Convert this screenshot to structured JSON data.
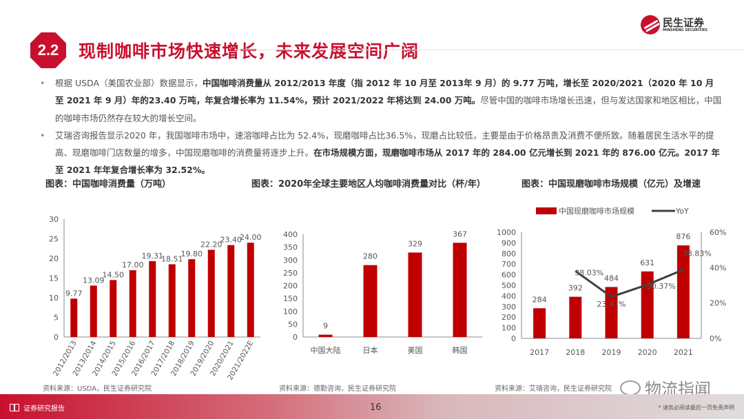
{
  "header": {
    "section_number": "2.2",
    "title": "现制咖啡市场快速增长，未来发展空间广阔",
    "logo_cn": "民生证券",
    "logo_en": "MINSHENG SECURITIES"
  },
  "paragraphs": [
    [
      {
        "t": "根据 USDA（美国农业部）数据显示，",
        "b": false
      },
      {
        "t": "中国咖啡消费量从 2012/2013 年度（指 2012 年 10 月至 2013年 9 月）的 9.77 万吨，增长至 2020/2021（2020 年 10 月至 2021 年 9 月）年的23.40 万吨，年复合增长率为 11.54%，预计 2021/2022 年将达到 24.00 万吨。",
        "b": true
      },
      {
        "t": "尽管中国的咖啡市场增长迅速，但与发达国家和地区相比，中国的咖啡市场仍然存在较大的增长空间。",
        "b": false
      }
    ],
    [
      {
        "t": "艾瑞咨询报告显示2020 年，我国咖啡市场中，速溶咖啡占比为 52.4%，现磨咖啡占比36.5%，现磨占比较低，主要是由于价格昂贵及消费不便所致。随着居民生活水平的提高、现磨咖啡门店数量的增多，中国现磨咖啡的消费量将逐步上升。",
        "b": false
      },
      {
        "t": "在市场规模方面，现磨咖啡市场从 2017 年的 284.00 亿元增长到 2021 年的 876.00 亿元。2017 年至 2021 年年复合增长率为 32.52%。",
        "b": true
      }
    ]
  ],
  "captions": [
    "图表：中国咖啡消费量（万吨）",
    "图表：2020年全球主要地区人均咖啡消费量对比（杯/年）",
    "图表：中国现磨咖啡市场规模（亿元）及增速"
  ],
  "sources": [
    "资料来源：USDA，民生证券研究院",
    "资料来源：德勤咨询，民生证券研究院",
    "资料来源：艾瑞咨询，民生证券研究院"
  ],
  "footer": {
    "left": "证券研究报告",
    "page": "16",
    "right": "* 请务必阅读最后一页免责声明"
  },
  "watermark": "物流指闻",
  "colors": {
    "brand": "#c8102e",
    "bar": "#c00000",
    "line": "#404040"
  },
  "chart_data": [
    {
      "type": "bar",
      "categories": [
        "2012/2013",
        "2013/2014",
        "2014/2015",
        "2015/2016",
        "2016/2017",
        "2017/2018",
        "2018/2019",
        "2019/2020",
        "2020/2021",
        "2021/2022E"
      ],
      "values": [
        9.77,
        13.09,
        14.5,
        17.0,
        19.31,
        18.51,
        19.8,
        22.2,
        23.4,
        24.0
      ],
      "labels": [
        "9.77",
        "13.09",
        "14.50",
        "17.00",
        "19.31",
        "18.51",
        "19.80",
        "22.20",
        "23.40",
        "24.00"
      ],
      "ylim": [
        0,
        30
      ],
      "yticks": [
        0,
        5,
        10,
        15,
        20,
        25,
        30
      ]
    },
    {
      "type": "bar",
      "categories": [
        "中国大陆",
        "日本",
        "美国",
        "韩国"
      ],
      "values": [
        9,
        280,
        329,
        367
      ],
      "labels": [
        "9",
        "280",
        "329",
        "367"
      ],
      "ylim": [
        0,
        400
      ],
      "yticks": [
        0,
        50,
        100,
        150,
        200,
        250,
        300,
        350,
        400
      ]
    },
    {
      "type": "bar+line",
      "categories": [
        "2017",
        "2018",
        "2019",
        "2020",
        "2021"
      ],
      "series": [
        {
          "name": "中国现磨咖啡市场规模",
          "type": "bar",
          "values": [
            284,
            392,
            484,
            631,
            876
          ],
          "labels": [
            "284",
            "392",
            "484",
            "631",
            "876"
          ]
        },
        {
          "name": "YoY",
          "type": "line",
          "axis": "right",
          "values": [
            null,
            38.03,
            23.47,
            30.37,
            38.83
          ],
          "labels": [
            "",
            "38.03%",
            "23.47%",
            "30.37%",
            "38.83%"
          ]
        }
      ],
      "ylim": [
        0,
        1000
      ],
      "yticks": [
        0,
        100,
        200,
        300,
        400,
        500,
        600,
        700,
        800,
        900,
        1000
      ],
      "y2lim": [
        0,
        60
      ],
      "y2ticks": [
        "0%",
        "20%",
        "40%",
        "60%"
      ],
      "legend": "top"
    }
  ]
}
